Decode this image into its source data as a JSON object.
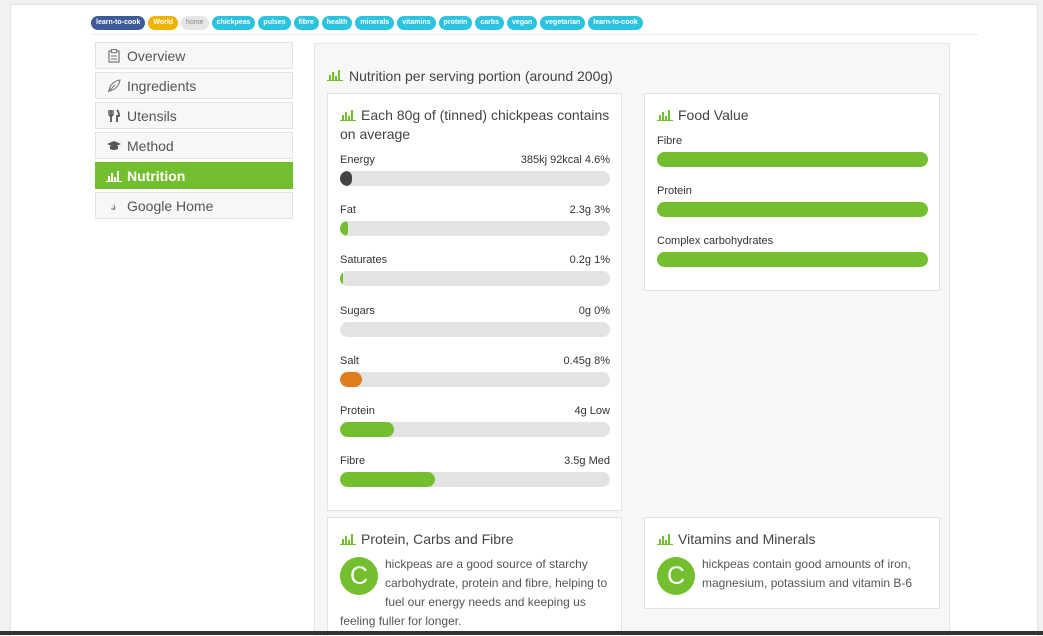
{
  "tags": [
    {
      "label": "learn-to-cook",
      "color": "#3d5a99"
    },
    {
      "label": "World",
      "color": "#f0b400"
    },
    {
      "label": "home",
      "color": "#e6e6e6",
      "text_color": "#888888"
    },
    {
      "label": "chickpeas",
      "color": "#2bc4e0"
    },
    {
      "label": "pulses",
      "color": "#2bc4e0"
    },
    {
      "label": "fibre",
      "color": "#2bc4e0"
    },
    {
      "label": "health",
      "color": "#2bc4e0"
    },
    {
      "label": "minerals",
      "color": "#2bc4e0"
    },
    {
      "label": "vitamins",
      "color": "#2bc4e0"
    },
    {
      "label": "protein",
      "color": "#2bc4e0"
    },
    {
      "label": "carbs",
      "color": "#2bc4e0"
    },
    {
      "label": "vegan",
      "color": "#2bc4e0"
    },
    {
      "label": "vegetarian",
      "color": "#2bc4e0"
    },
    {
      "label": "learn-to-cook",
      "color": "#2bc4e0"
    }
  ],
  "sidebar": {
    "items": [
      {
        "label": "Overview",
        "icon": "clipboard-icon"
      },
      {
        "label": "Ingredients",
        "icon": "leaf-icon"
      },
      {
        "label": "Utensils",
        "icon": "cutlery-icon"
      },
      {
        "label": "Method",
        "icon": "graduation-cap-icon"
      },
      {
        "label": "Nutrition",
        "icon": "bar-chart-icon",
        "active": true
      },
      {
        "label": "Google Home",
        "icon": "google-icon"
      }
    ]
  },
  "main": {
    "title": "Nutrition per serving portion (around 200g)",
    "nutrition_panel": {
      "title": "Each 80g of (tinned) chickpeas contains on average",
      "rows": [
        {
          "label": "Energy",
          "value": "385kj 92kcal 4.6%",
          "fill_pct": 4.6,
          "color": "#444444"
        },
        {
          "label": "Fat",
          "value": "2.3g 3%",
          "fill_pct": 3,
          "color": "#74bf2f"
        },
        {
          "label": "Saturates",
          "value": "0.2g 1%",
          "fill_pct": 1,
          "color": "#74bf2f"
        },
        {
          "label": "Sugars",
          "value": "0g 0%",
          "fill_pct": 0,
          "color": "#74bf2f"
        },
        {
          "label": "Salt",
          "value": "0.45g 8%",
          "fill_pct": 8,
          "color": "#e07b20"
        },
        {
          "label": "Protein",
          "value": "4g Low",
          "fill_pct": 20,
          "color": "#74bf2f"
        },
        {
          "label": "Fibre",
          "value": "3.5g Med",
          "fill_pct": 35,
          "color": "#74bf2f"
        }
      ]
    },
    "food_value_panel": {
      "title": "Food Value",
      "rows": [
        {
          "label": "Fibre",
          "fill_pct": 100
        },
        {
          "label": "Protein",
          "fill_pct": 100
        },
        {
          "label": "Complex carbohydrates",
          "fill_pct": 100
        }
      ]
    },
    "protein_panel": {
      "title": "Protein, Carbs and Fibre",
      "dropcap": "C",
      "text": "hickpeas are a good source of starchy carbohydrate, protein and fibre, helping to fuel our energy needs and keeping us feeling fuller for longer."
    },
    "vitamins_panel": {
      "title": "Vitamins and Minerals",
      "dropcap": "C",
      "text": "hickpeas contain good amounts of iron, magnesium, potassium and vitamin B-6"
    }
  },
  "colors": {
    "accent": "#74bf2f",
    "salt": "#e07b20",
    "energy": "#444444"
  }
}
